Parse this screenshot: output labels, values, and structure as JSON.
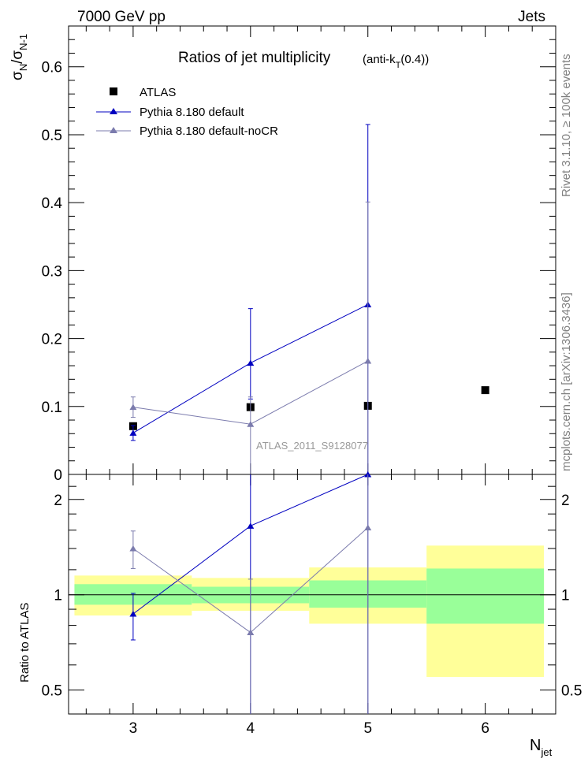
{
  "header": {
    "energy_label": "7000 GeV pp",
    "category_label": "Jets",
    "title": "Ratios of jet multiplicity",
    "title_suffix_pre": "(anti-k",
    "title_suffix_sub": "T",
    "title_suffix_post": "(0.4))",
    "watermark": "ATLAS_2011_S9128077"
  },
  "side_labels": {
    "rivet": "Rivet 3.1.10, ≥ 100k events",
    "mcplots": "mcplots.cern.ch [arXiv:1306.3436]"
  },
  "axes": {
    "top_ylabel_main": "σ",
    "top_ylabel_sub1": "N",
    "top_ylabel_slash": "/σ",
    "top_ylabel_sub2": "N-1",
    "ratio_ylabel": "Ratio to ATLAS",
    "xlabel_main": "N",
    "xlabel_sub": "jet"
  },
  "legend": [
    {
      "label": "ATLAS",
      "marker": "square",
      "color": "#000000"
    },
    {
      "label": "Pythia 8.180 default",
      "marker": "triangle",
      "color": "#0000c0"
    },
    {
      "label": "Pythia 8.180 default-noCR",
      "marker": "triangle",
      "color": "#7b7bad"
    }
  ],
  "chart_data": [
    {
      "type": "scatter",
      "title": "Ratios of jet multiplicity (anti-kT(0.4))",
      "xlabel": "N_jet",
      "ylabel": "σ_N/σ_N-1",
      "xlim": [
        2.45,
        6.6
      ],
      "ylim": [
        0,
        0.66
      ],
      "yticks": [
        0,
        0.1,
        0.2,
        0.3,
        0.4,
        0.5,
        0.6
      ],
      "ytick_labels": [
        "0",
        "0.1",
        "0.2",
        "0.3",
        "0.4",
        "0.5",
        "0.6"
      ],
      "xticks": [
        3,
        4,
        5,
        6
      ],
      "xtick_labels": [
        "3",
        "4",
        "5",
        "6"
      ],
      "series": [
        {
          "name": "ATLAS",
          "x": [
            3,
            4,
            5,
            6
          ],
          "y": [
            0.071,
            0.099,
            0.101,
            0.124
          ],
          "err_lo": [
            0.0,
            0.0,
            0.0,
            0.0
          ],
          "err_hi": [
            0.0,
            0.0,
            0.0,
            0.0
          ],
          "color": "#000000",
          "marker": "square"
        },
        {
          "name": "Pythia 8.180 default",
          "x": [
            3,
            4,
            5
          ],
          "y": [
            0.061,
            0.164,
            0.25
          ],
          "err_lo": [
            0.011,
            0.053,
            0.25
          ],
          "err_hi": [
            0.011,
            0.08,
            0.265
          ],
          "color": "#0000c0",
          "marker": "triangle"
        },
        {
          "name": "Pythia 8.180 default-noCR",
          "x": [
            3,
            4,
            5
          ],
          "y": [
            0.099,
            0.074,
            0.167
          ],
          "err_lo": [
            0.015,
            0.074,
            0.167
          ],
          "err_hi": [
            0.015,
            0.04,
            0.234
          ],
          "color": "#7b7bad",
          "marker": "triangle"
        }
      ]
    },
    {
      "type": "scatter",
      "title": "",
      "xlabel": "N_jet",
      "ylabel": "Ratio to ATLAS",
      "yscale": "log",
      "xlim": [
        2.45,
        6.6
      ],
      "ylim": [
        0.42,
        2.4
      ],
      "yticks": [
        0.5,
        1,
        2
      ],
      "ytick_labels": [
        "0.5",
        "1",
        "2"
      ],
      "xticks": [
        3,
        4,
        5,
        6
      ],
      "xtick_labels": [
        "3",
        "4",
        "5",
        "6"
      ],
      "bands": [
        {
          "x0": 2.5,
          "x1": 3.5,
          "stat_lo": 0.93,
          "stat_hi": 1.08,
          "tot_lo": 0.86,
          "tot_hi": 1.15,
          "center": 1.0
        },
        {
          "x0": 3.5,
          "x1": 4.5,
          "stat_lo": 0.94,
          "stat_hi": 1.06,
          "tot_lo": 0.89,
          "tot_hi": 1.13,
          "center": 1.0
        },
        {
          "x0": 4.5,
          "x1": 5.5,
          "stat_lo": 0.91,
          "stat_hi": 1.11,
          "tot_lo": 0.81,
          "tot_hi": 1.22,
          "center": 1.0
        },
        {
          "x0": 5.5,
          "x1": 6.5,
          "stat_lo": 0.81,
          "stat_hi": 1.21,
          "tot_lo": 0.55,
          "tot_hi": 1.43,
          "center": 1.0
        }
      ],
      "series": [
        {
          "name": "Pythia 8.180 default",
          "x": [
            3,
            4,
            5
          ],
          "y": [
            0.87,
            1.65,
            2.4
          ],
          "err_lo": [
            0.15,
            1.3,
            2.0
          ],
          "err_hi": [
            0.14,
            1.2,
            1.0
          ],
          "color": "#0000c0",
          "marker": "triangle"
        },
        {
          "name": "Pythia 8.180 default-noCR",
          "x": [
            3,
            4,
            5
          ],
          "y": [
            1.4,
            0.76,
            1.63
          ],
          "err_lo": [
            0.19,
            0.4,
            1.3
          ],
          "err_hi": [
            0.19,
            0.36,
            1.0
          ],
          "color": "#7b7bad",
          "marker": "triangle"
        }
      ]
    }
  ],
  "colors": {
    "stat_band": "#99ff99",
    "total_band": "#ffff99"
  }
}
